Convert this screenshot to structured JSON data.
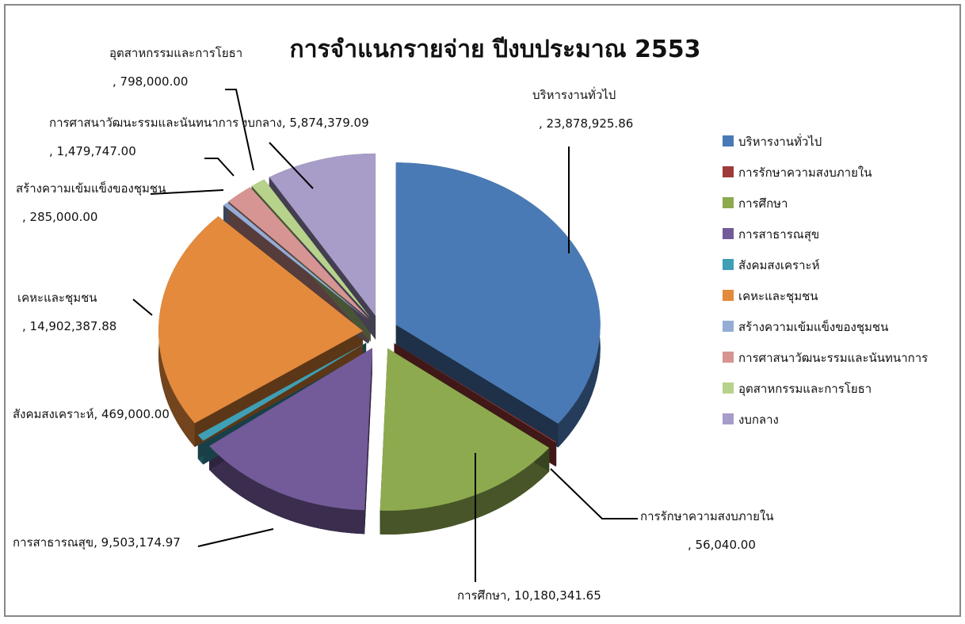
{
  "chart_data": {
    "type": "pie",
    "title": "การจำแนกรายจ่าย ปีงบประมาณ 2553",
    "categories": [
      "บริหารงานทั่วไป",
      "การรักษาความสงบภายใน",
      "การศึกษา",
      "การสาธารณสุข",
      "สังคมสงเคราะห์",
      "เคหะและชุมชน",
      "สร้างความเข้มแข็งของชุมชน",
      "การศาสนาวัฒนะรรมและนันทนาการ",
      "อุตสาหกรรมและการโยธา",
      "งบกลาง"
    ],
    "values": [
      23878925.86,
      56040.0,
      10180341.65,
      9503174.97,
      469000.0,
      14902387.88,
      285000.0,
      1479747.0,
      798000.0,
      5874379.09
    ],
    "value_labels": [
      ", 23,878,925.86",
      ", 56,040.00",
      ", 10,180,341.65",
      ", 9,503,174.97",
      ", 469,000.00",
      ", 14,902,387.88",
      ", 285,000.00",
      ", 1,479,747.00",
      ", 798,000.00",
      ", 5,874,379.09"
    ],
    "colors": [
      "#4a7ab5",
      "#9e3b39",
      "#8daa4f",
      "#735a99",
      "#3f9fb5",
      "#e48a3c",
      "#94acd6",
      "#d69592",
      "#b7d28a",
      "#a89cc8"
    ],
    "legend": "right"
  }
}
